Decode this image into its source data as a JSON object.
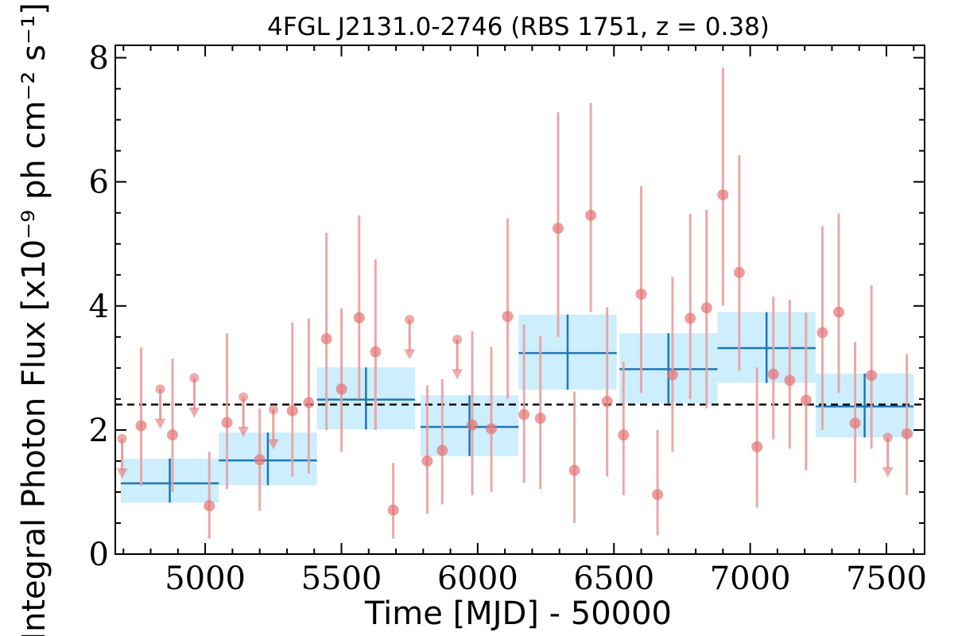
{
  "chart_data": {
    "type": "scatter",
    "title": "4FGL J2131.0-2746 (RBS 1751, z = 0.38)",
    "xlabel": "Time [MJD] - 50000",
    "ylabel": "Integral Photon Flux [x10⁻⁹ ph cm⁻² s⁻¹]",
    "xlim": [
      4670,
      7640
    ],
    "ylim": [
      0,
      8.2
    ],
    "x_ticks": [
      "5000",
      "5500",
      "6000",
      "6500",
      "7000",
      "7500"
    ],
    "x_tick_values": [
      5000,
      5500,
      6000,
      6500,
      7000,
      7500
    ],
    "y_ticks": [
      "0",
      "2",
      "4",
      "6",
      "8"
    ],
    "y_tick_values": [
      0,
      2,
      4,
      6,
      8
    ],
    "grid": false,
    "mean_flux": 2.41,
    "colors": {
      "points": "#e57373",
      "error_bars": "#e8a0a0",
      "bins_fill": "#cdeefd",
      "bins_line": "#1f77b4",
      "mean_line": "#000000"
    },
    "series": [
      {
        "kind": "points",
        "x": [
          4765,
          4880,
          5015,
          5080,
          5200,
          5320,
          5380,
          5445,
          5500,
          5565,
          5625,
          5690,
          5815,
          5870,
          5980,
          6050,
          6110,
          6170,
          6230,
          6295,
          6355,
          6415,
          6475,
          6535,
          6600,
          6660,
          6715,
          6780,
          6840,
          6900,
          6960,
          7025,
          7085,
          7145,
          7205,
          7265,
          7325,
          7385,
          7445,
          7575
        ],
        "y": [
          2.07,
          1.92,
          0.78,
          2.12,
          1.52,
          2.31,
          2.44,
          3.47,
          2.66,
          3.81,
          3.26,
          0.71,
          1.5,
          1.67,
          2.08,
          2.02,
          3.83,
          2.25,
          2.19,
          5.25,
          1.35,
          5.46,
          2.46,
          1.92,
          4.19,
          0.96,
          2.89,
          3.8,
          3.97,
          5.79,
          4.54,
          1.73,
          2.9,
          2.8,
          2.48,
          3.57,
          3.9,
          2.11,
          2.88,
          1.94
        ],
        "y_low": [
          1.1,
          1.0,
          0.25,
          1.05,
          0.7,
          1.25,
          1.3,
          2.0,
          1.65,
          2.5,
          2.0,
          0.25,
          0.65,
          0.8,
          0.95,
          1.0,
          2.5,
          1.15,
          1.05,
          3.5,
          0.5,
          3.9,
          1.25,
          0.95,
          2.6,
          0.3,
          1.65,
          2.5,
          2.35,
          4.0,
          2.95,
          0.75,
          1.85,
          1.7,
          1.35,
          2.0,
          2.6,
          1.15,
          1.7,
          0.95
        ],
        "y_high": [
          3.33,
          3.15,
          1.65,
          3.56,
          2.35,
          3.73,
          3.8,
          5.18,
          3.96,
          5.46,
          4.75,
          1.47,
          2.72,
          2.82,
          3.59,
          3.34,
          5.41,
          3.7,
          3.52,
          7.12,
          2.62,
          7.27,
          3.98,
          3.1,
          5.93,
          2.0,
          4.47,
          5.48,
          5.55,
          7.84,
          6.43,
          3.01,
          4.15,
          4.1,
          3.89,
          5.28,
          5.49,
          3.42,
          4.33,
          3.23
        ]
      },
      {
        "kind": "upper_limits",
        "x": [
          4695,
          4835,
          4960,
          5140,
          5250,
          5750,
          5925,
          7505
        ],
        "y": [
          1.86,
          2.66,
          2.84,
          2.53,
          2.33,
          3.78,
          3.46,
          1.88
        ],
        "arrow_to": [
          1.28,
          2.08,
          2.26,
          1.95,
          1.75,
          3.2,
          2.88,
          1.3
        ]
      },
      {
        "kind": "binned",
        "x_start": [
          4690,
          5050,
          5410,
          5790,
          6150,
          6520,
          6880,
          7240
        ],
        "x_end": [
          5050,
          5410,
          5770,
          6150,
          6510,
          6880,
          7240,
          7600
        ],
        "y": [
          1.14,
          1.51,
          2.49,
          2.05,
          3.24,
          2.98,
          3.32,
          2.38
        ],
        "y_low": [
          0.83,
          1.11,
          2.01,
          1.58,
          2.65,
          2.43,
          2.76,
          1.88
        ],
        "y_high": [
          1.54,
          1.96,
          3.01,
          2.56,
          3.86,
          3.56,
          3.9,
          2.91
        ]
      }
    ]
  }
}
